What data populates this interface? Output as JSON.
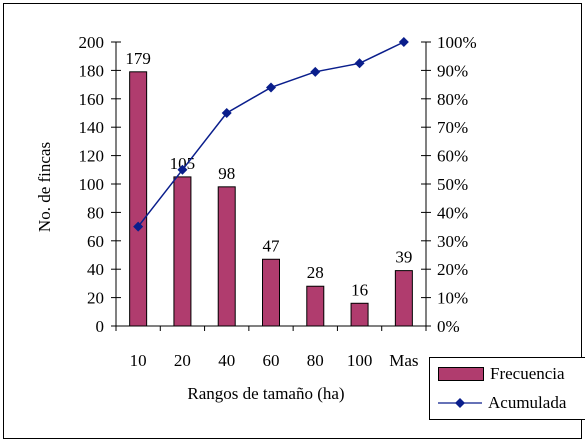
{
  "chart_data": {
    "type": "bar",
    "xlabel": "Rangos de tamaño (ha)",
    "ylabel": "No. de fincas",
    "categories": [
      "10",
      "20",
      "40",
      "60",
      "80",
      "100",
      "Mas"
    ],
    "ylim": [
      0,
      200
    ],
    "y_ticks": [
      "0",
      "20",
      "40",
      "60",
      "80",
      "100",
      "120",
      "140",
      "160",
      "180",
      "200"
    ],
    "y2lim": [
      0,
      100
    ],
    "y2_ticks": [
      "0%",
      "10%",
      "20%",
      "30%",
      "40%",
      "50%",
      "60%",
      "70%",
      "80%",
      "90%",
      "100%"
    ],
    "grid": false,
    "legend_position": "bottom-right",
    "series": [
      {
        "name": "Frecuencia",
        "type": "bar",
        "axis": "left",
        "color": "#B03C6E",
        "values": [
          179,
          105,
          98,
          47,
          28,
          16,
          39
        ],
        "data_labels": [
          "179",
          "105",
          "98",
          "47",
          "28",
          "16",
          "39"
        ]
      },
      {
        "name": "Acumulada",
        "type": "line",
        "axis": "right",
        "color": "#0A1E8C",
        "marker": "diamond",
        "values": [
          35,
          55,
          75,
          84,
          89.5,
          92.5,
          100
        ]
      }
    ]
  }
}
